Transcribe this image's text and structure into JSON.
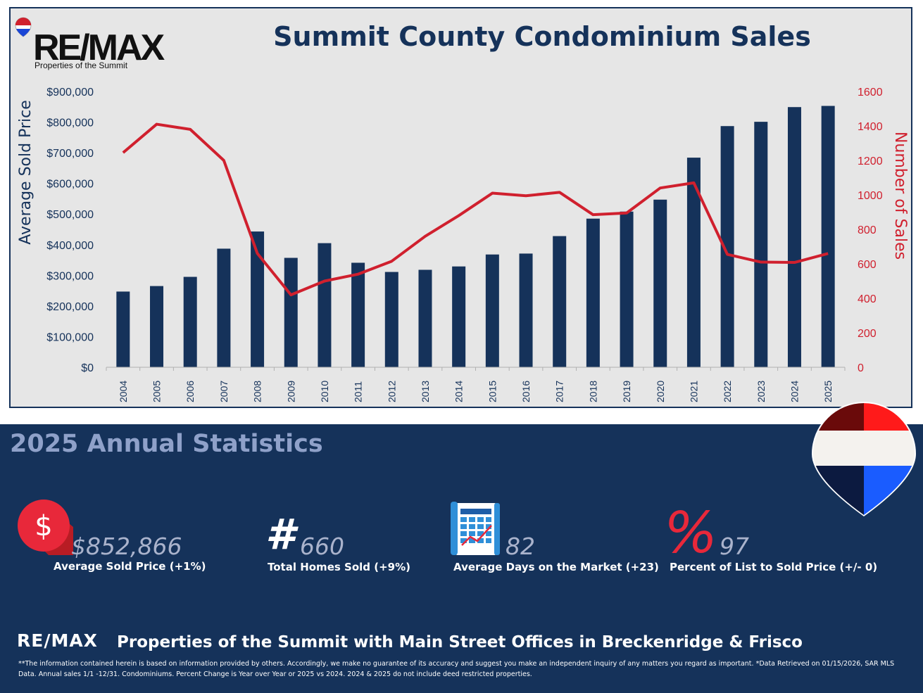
{
  "header": {
    "title": "Summit County Condominium Sales",
    "brand": "RE/MAX",
    "brand_sub": "Properties of the Summit"
  },
  "chart_data": {
    "type": "bar",
    "title": "Summit County Condominium Sales",
    "ylabel": "Average Sold Price",
    "y2label": "Number of Sales",
    "categories": [
      "2004",
      "2005",
      "2006",
      "2007",
      "2008",
      "2009",
      "2010",
      "2011",
      "2012",
      "2013",
      "2014",
      "2015",
      "2016",
      "2017",
      "2018",
      "2019",
      "2020",
      "2021",
      "2022",
      "2023",
      "2024",
      "2025"
    ],
    "series": [
      {
        "name": "Average Sold Price",
        "type": "bar",
        "axis": "left",
        "color": "#15325a",
        "values": [
          247000,
          265000,
          295000,
          387000,
          443000,
          357000,
          405000,
          341000,
          311000,
          318000,
          329000,
          368000,
          371000,
          428000,
          485000,
          508000,
          547000,
          684000,
          787000,
          801000,
          849000,
          852866
        ]
      },
      {
        "name": "Number of Sales",
        "type": "line",
        "axis": "right",
        "color": "#d0202e",
        "values": [
          1245,
          1410,
          1380,
          1200,
          660,
          420,
          500,
          540,
          615,
          760,
          880,
          1010,
          995,
          1015,
          885,
          895,
          1040,
          1070,
          655,
          610,
          608,
          660
        ]
      }
    ],
    "ylim": [
      0,
      900000
    ],
    "y2lim": [
      0,
      1600
    ],
    "yticks": [
      "$0",
      "$100,000",
      "$200,000",
      "$300,000",
      "$400,000",
      "$500,000",
      "$600,000",
      "$700,000",
      "$800,000",
      "$900,000"
    ],
    "y2ticks": [
      "0",
      "200",
      "400",
      "600",
      "800",
      "1000",
      "1200",
      "1400",
      "1600"
    ],
    "grid": false,
    "legend": "none"
  },
  "stats": {
    "title": "2025 Annual Statistics",
    "items": [
      {
        "icon": "dollar-icon",
        "value": "$852,866",
        "label": "Average Sold Price (+1%)"
      },
      {
        "icon": "hash-icon",
        "value": "660",
        "label": "Total Homes Sold (+9%)"
      },
      {
        "icon": "calendar-icon",
        "value": "82",
        "label": "Average Days on the Market (+23)"
      },
      {
        "icon": "percent-icon",
        "value": "97",
        "label": "Percent of List to Sold Price (+/- 0)"
      }
    ]
  },
  "footer": {
    "brand": "RE/MAX",
    "title": "Properties of the Summit with Main Street Offices in Breckenridge & Frisco",
    "disclaimer": "**The information contained herein is based on information provided by others. Accordingly, we make no guarantee of its accuracy and suggest you make an independent inquiry of any matters you regard as important. *Data Retrieved on 01/15/2026, SAR MLS Data. Annual sales 1/1 -12/31. Condominiums. Percent Change is Year over Year or 2025 vs 2024. 2024 & 2025 do not include deed restricted properties."
  },
  "colors": {
    "navy": "#15325a",
    "red": "#d0202e",
    "chart_bg": "#e6e6e6",
    "stat_value": "#aab3cc"
  }
}
